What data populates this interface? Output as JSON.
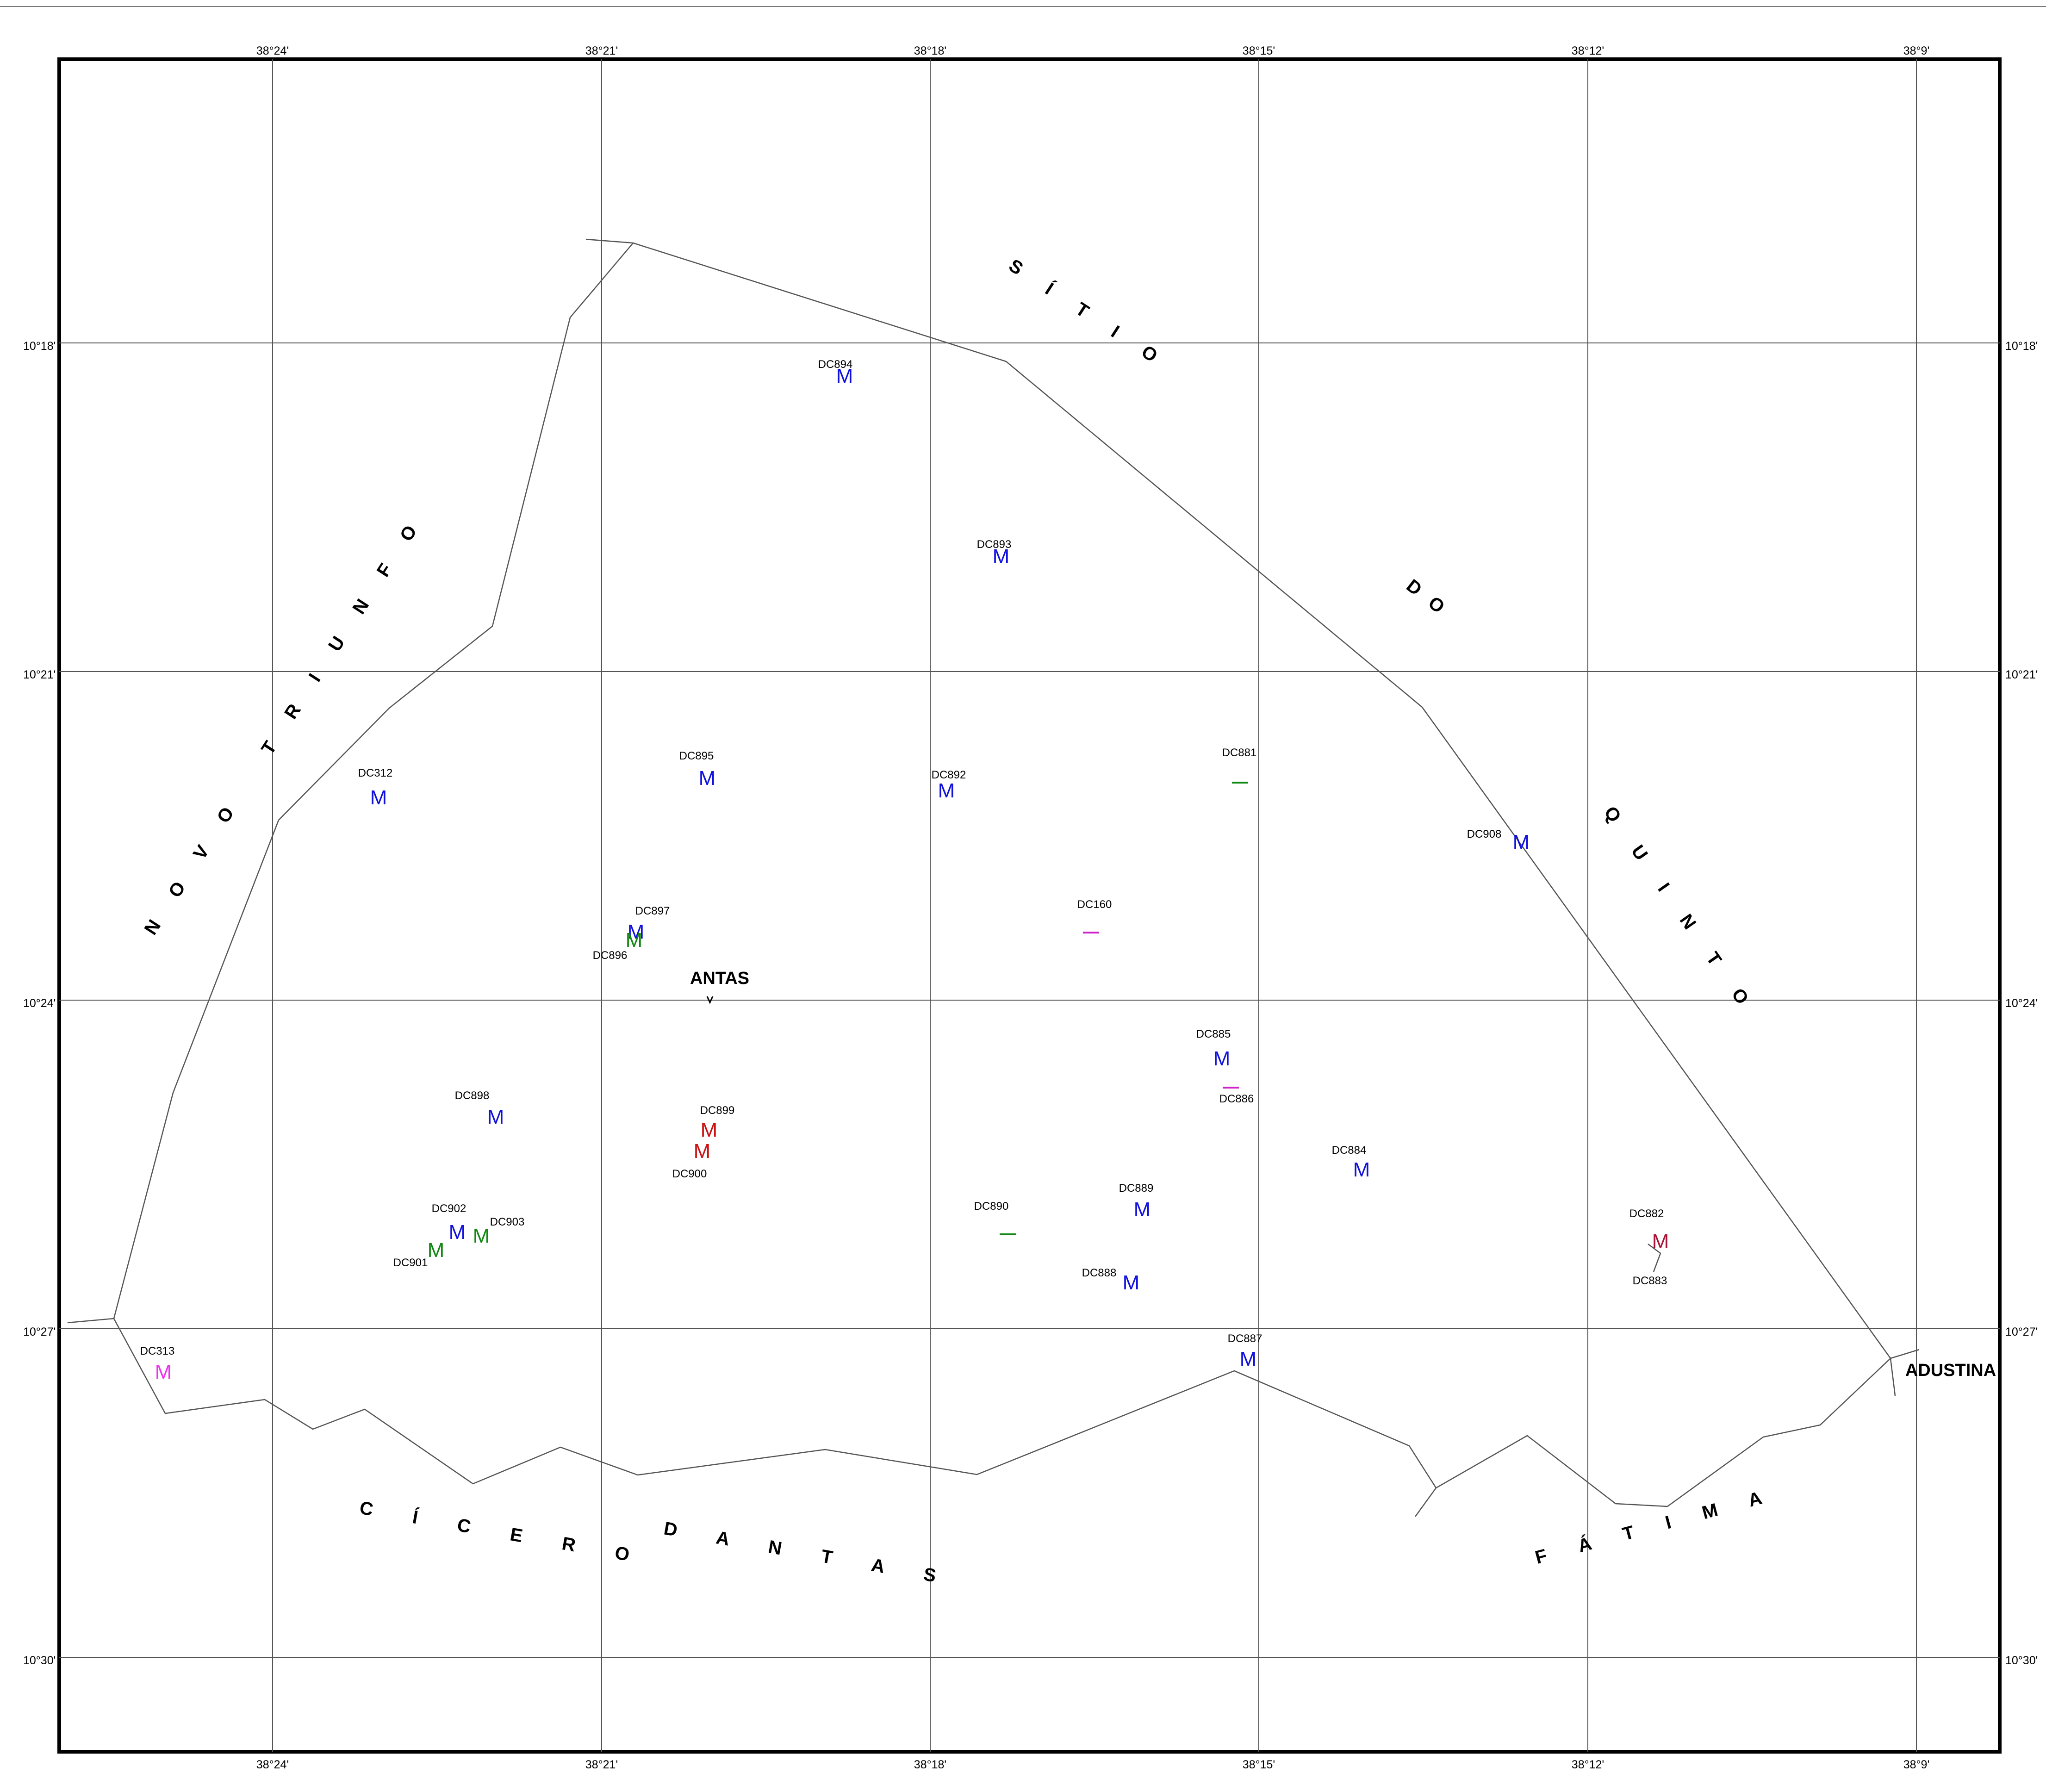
{
  "map": {
    "colors": {
      "blue": "#1111dd",
      "green": "#118811",
      "red": "#cc1111",
      "darkred": "#aa1133",
      "magenta": "#ee33ee",
      "purple": "#cc22cc",
      "grid": "#555555",
      "frame": "#000000"
    },
    "longitude_ticks": [
      "38°24'",
      "38°21'",
      "38°18'",
      "38°15'",
      "38°12'",
      "38°9'"
    ],
    "latitude_ticks": [
      "10°18'",
      "10°21'",
      "10°24'",
      "10°27'",
      "10°30'"
    ],
    "regions": [
      {
        "name": "sitio",
        "text": "S Í T I O"
      },
      {
        "name": "do",
        "text": "D O"
      },
      {
        "name": "quinto",
        "text": "Q U I N T O"
      },
      {
        "name": "novo-triunfo",
        "text": "N O V O   T R I U N F O"
      },
      {
        "name": "cicero",
        "text": "C Í C E R O"
      },
      {
        "name": "dantas",
        "text": "D A N T A S"
      },
      {
        "name": "fatima",
        "text": "F Á T I M A"
      }
    ],
    "towns": [
      {
        "name": "antas",
        "label": "ANTAS"
      },
      {
        "name": "adustina",
        "label": "ADUSTINA"
      }
    ],
    "sites": [
      {
        "code": "DC894",
        "symbol": "M",
        "color": "blue"
      },
      {
        "code": "DC893",
        "symbol": "M",
        "color": "blue"
      },
      {
        "code": "DC895",
        "symbol": "M",
        "color": "blue"
      },
      {
        "code": "DC892",
        "symbol": "M",
        "color": "blue"
      },
      {
        "code": "DC881",
        "symbol": "",
        "color": "green"
      },
      {
        "code": "DC908",
        "symbol": "M",
        "color": "blue"
      },
      {
        "code": "DC312",
        "symbol": "M",
        "color": "blue"
      },
      {
        "code": "DC897",
        "symbol": "M",
        "color": "blue"
      },
      {
        "code": "DC896",
        "symbol": "M",
        "color": "green"
      },
      {
        "code": "DC160",
        "symbol": "",
        "color": "purple"
      },
      {
        "code": "DC885",
        "symbol": "M",
        "color": "blue"
      },
      {
        "code": "DC886",
        "symbol": "",
        "color": "purple"
      },
      {
        "code": "DC898",
        "symbol": "M",
        "color": "blue"
      },
      {
        "code": "DC899",
        "symbol": "M",
        "color": "red"
      },
      {
        "code": "DC900",
        "symbol": "M",
        "color": "red"
      },
      {
        "code": "DC884",
        "symbol": "M",
        "color": "blue"
      },
      {
        "code": "DC889",
        "symbol": "M",
        "color": "blue"
      },
      {
        "code": "DC890",
        "symbol": "",
        "color": "green"
      },
      {
        "code": "DC902",
        "symbol": "M",
        "color": "blue"
      },
      {
        "code": "DC903",
        "symbol": "M",
        "color": "green"
      },
      {
        "code": "DC901",
        "symbol": "M",
        "color": "green"
      },
      {
        "code": "DC888",
        "symbol": "M",
        "color": "blue"
      },
      {
        "code": "DC882",
        "symbol": "M",
        "color": "darkred"
      },
      {
        "code": "DC883",
        "symbol": "",
        "color": "darkred"
      },
      {
        "code": "DC313",
        "symbol": "M",
        "color": "magenta"
      },
      {
        "code": "DC887",
        "symbol": "M",
        "color": "blue"
      }
    ]
  }
}
